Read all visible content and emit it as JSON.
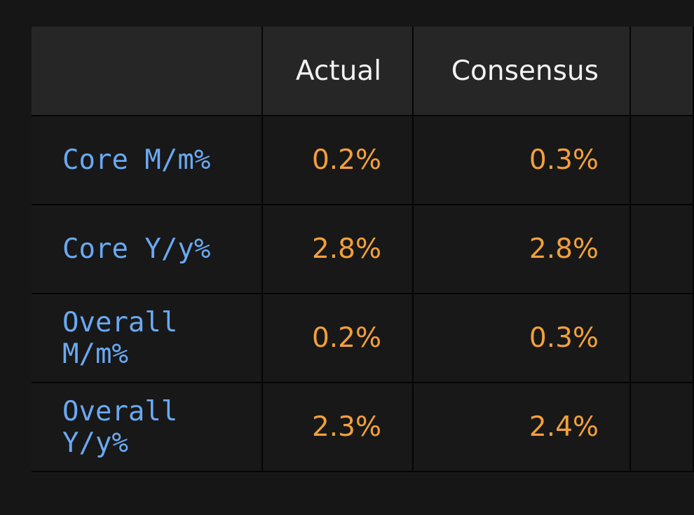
{
  "table": {
    "header": [
      "Actual",
      "Consensus"
    ],
    "rows": [
      [
        "Core M/m%",
        "0.2%",
        "0.3%"
      ],
      [
        "Core Y/y%",
        "2.8%",
        "2.8%"
      ],
      [
        "Overall M/m%",
        "0.2%",
        "0.3%"
      ],
      [
        "Overall Y/y%",
        "2.3%",
        "2.4%"
      ]
    ]
  }
}
